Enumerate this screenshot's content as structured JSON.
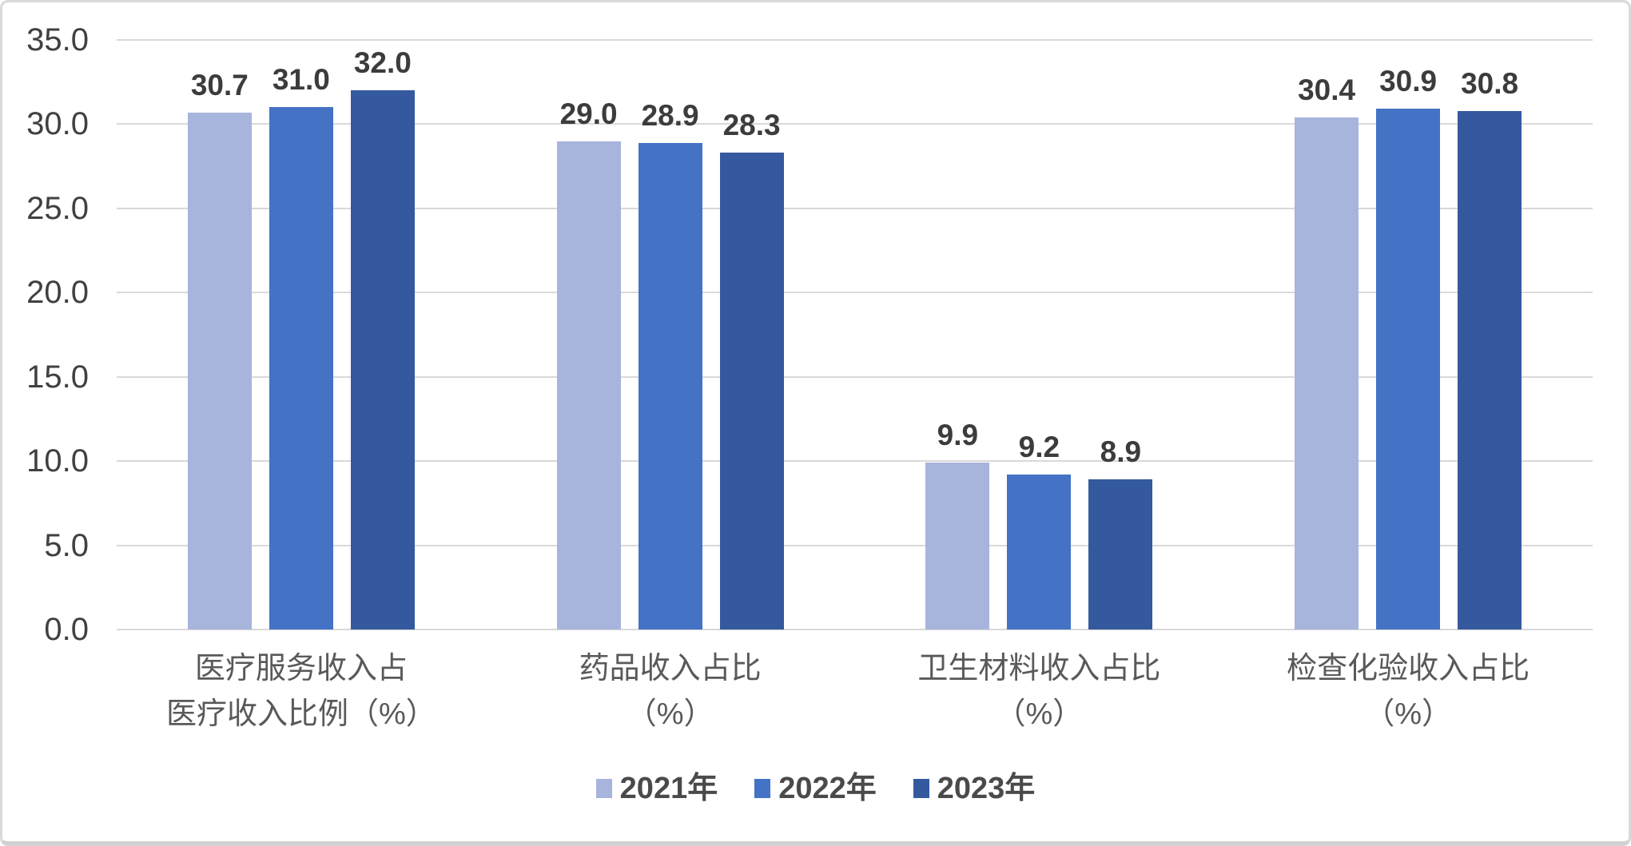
{
  "chart_data": {
    "type": "bar",
    "title": "",
    "categories": [
      {
        "label_lines": [
          "医疗服务收入占",
          "医疗收入比例（%）"
        ]
      },
      {
        "label_lines": [
          "药品收入占比",
          "（%）"
        ]
      },
      {
        "label_lines": [
          "卫生材料收入占比",
          "（%）"
        ]
      },
      {
        "label_lines": [
          "检查化验收入占比",
          "（%）"
        ]
      }
    ],
    "series": [
      {
        "name": "2021年",
        "color": "#A7B4DC",
        "values": [
          30.7,
          29.0,
          9.9,
          30.4
        ]
      },
      {
        "name": "2022年",
        "color": "#4473C6",
        "values": [
          31.0,
          28.9,
          9.2,
          30.9
        ]
      },
      {
        "name": "2023年",
        "color": "#34599E",
        "values": [
          32.0,
          28.3,
          8.9,
          30.8
        ]
      }
    ],
    "value_labels": [
      [
        "30.7",
        "29.0",
        "9.9",
        "30.4"
      ],
      [
        "31.0",
        "28.9",
        "9.2",
        "30.9"
      ],
      [
        "32.0",
        "28.3",
        "8.9",
        "30.8"
      ]
    ],
    "ylim": [
      0,
      35
    ],
    "ytick_step": 5,
    "ytick_labels": [
      "0.0",
      "5.0",
      "10.0",
      "15.0",
      "20.0",
      "25.0",
      "30.0",
      "35.0"
    ],
    "grid": true,
    "gridline_color": "#D9D9D9",
    "axis_text_color": "#404040",
    "category_text_color": "#595959",
    "legend_position": "bottom"
  }
}
